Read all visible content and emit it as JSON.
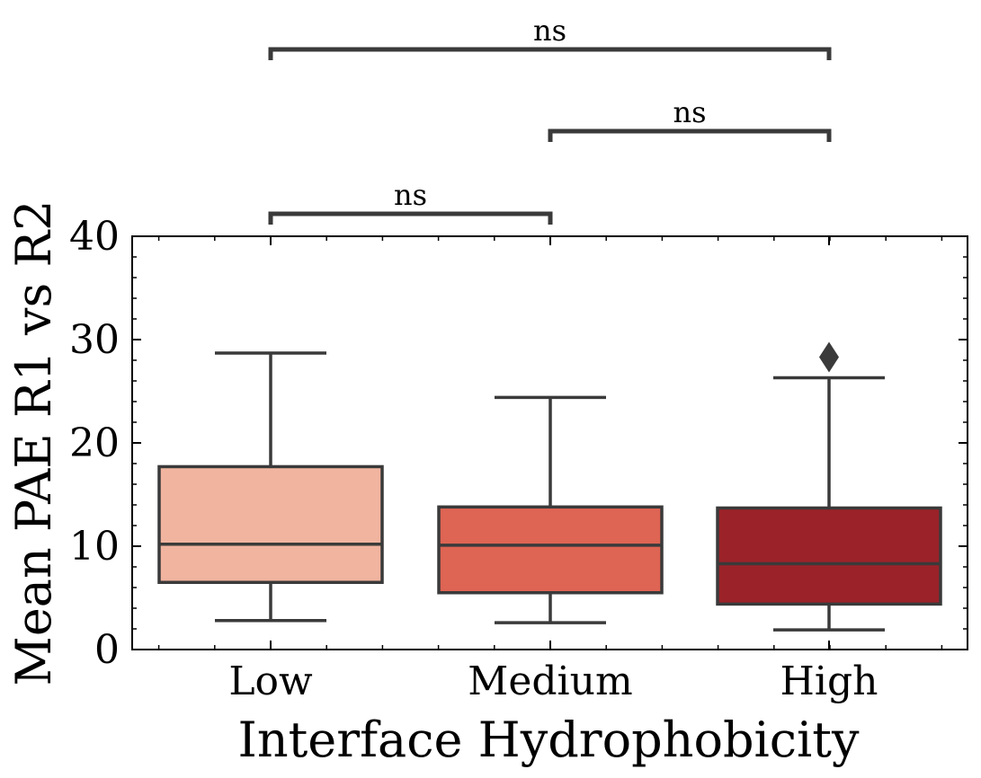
{
  "chart_data": {
    "type": "box",
    "xlabel": "Interface Hydrophobicity",
    "ylabel": "Mean PAE R1 vs R2",
    "ylim": [
      0,
      40
    ],
    "yticks": [
      0,
      10,
      20,
      30,
      40
    ],
    "categories": [
      "Low",
      "Medium",
      "High"
    ],
    "boxes": [
      {
        "category": "Low",
        "whisker_low": 2.8,
        "q1": 6.5,
        "median": 10.2,
        "q3": 17.7,
        "whisker_high": 28.7,
        "outliers": [],
        "color": "#f0b49f"
      },
      {
        "category": "Medium",
        "whisker_low": 2.6,
        "q1": 5.5,
        "median": 10.1,
        "q3": 13.8,
        "whisker_high": 24.4,
        "outliers": [],
        "color": "#de6453"
      },
      {
        "category": "High",
        "whisker_low": 1.9,
        "q1": 4.4,
        "median": 8.3,
        "q3": 13.7,
        "whisker_high": 26.3,
        "outliers": [
          28.3
        ],
        "color": "#9b2229"
      }
    ],
    "significance": [
      {
        "from": "Low",
        "to": "Medium",
        "label": "ns"
      },
      {
        "from": "Medium",
        "to": "High",
        "label": "ns"
      },
      {
        "from": "Low",
        "to": "High",
        "label": "ns"
      }
    ],
    "grid": false,
    "line_color": "#3a3a3a"
  }
}
